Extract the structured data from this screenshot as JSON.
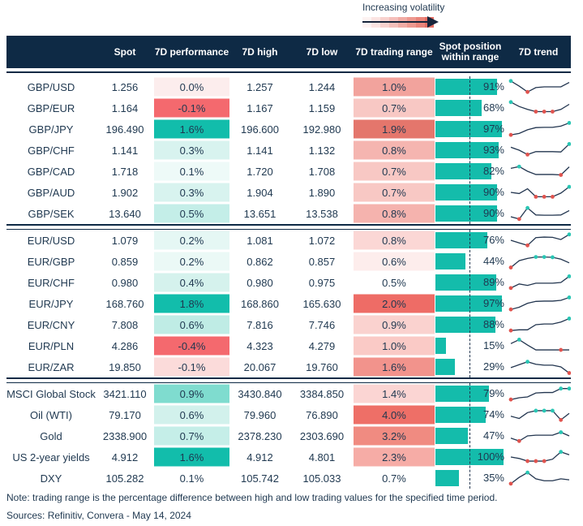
{
  "legend": {
    "label": "Increasing volatility",
    "gradient": [
      "#FDF3F2",
      "#FBE4E2",
      "#F8D2CE",
      "#F5BFBA",
      "#F1ACA5",
      "#EE9990",
      "#EA857B",
      "#E76F64"
    ],
    "arrow_color": "#16253B"
  },
  "colors": {
    "header_bg": "#0E2A45",
    "header_text": "#FFFFFF",
    "body_text": "#1F3850",
    "bar_teal": "#14BCAB",
    "spark_line": "#22354F",
    "spark_max_dot": "#29C6B4",
    "spark_min_dot": "#E0534E"
  },
  "chart_data": {
    "type": "table",
    "title": "",
    "columns": [
      {
        "label": ""
      },
      {
        "label": "Spot"
      },
      {
        "label": "7D performance"
      },
      {
        "label": "7D high"
      },
      {
        "label": "7D low"
      },
      {
        "label": "7D trading range"
      },
      {
        "label": "Spot position within range"
      },
      {
        "label": "7D trend"
      }
    ],
    "blocks": [
      [
        {
          "name": "GBP/USD",
          "spot": "1.256",
          "perf": "0.0%",
          "perf_bg": "#FCEDED",
          "high": "1.257",
          "low": "1.244",
          "range": "1.0%",
          "range_bg": "#F2A39D",
          "position": 91,
          "position_label": "91%",
          "trend": {
            "pts": [
              0.1,
              0.45,
              0.85,
              0.55,
              0.5,
              0.5,
              0.5,
              0.2
            ],
            "max": [
              0
            ],
            "min": [
              2
            ]
          }
        },
        {
          "name": "GBP/EUR",
          "spot": "1.164",
          "perf": "-0.1%",
          "perf_bg": "#F4696E",
          "high": "1.167",
          "low": "1.159",
          "range": "0.7%",
          "range_bg": "#F8C8C4",
          "position": 68,
          "position_label": "68%",
          "trend": {
            "pts": [
              0.1,
              0.4,
              0.6,
              0.75,
              0.75,
              0.75,
              0.6,
              0.25
            ],
            "max": [
              0
            ],
            "min": [
              3,
              4,
              5
            ]
          }
        },
        {
          "name": "GBP/JPY",
          "spot": "196.490",
          "perf": "1.6%",
          "perf_bg": "#12BDAB",
          "high": "196.600",
          "low": "192.980",
          "range": "1.9%",
          "range_bg": "#E4766C",
          "position": 97,
          "position_label": "97%",
          "trend": {
            "pts": [
              0.9,
              0.8,
              0.55,
              0.4,
              0.38,
              0.38,
              0.3,
              0.08
            ],
            "max": [
              7
            ],
            "min": [
              0
            ]
          }
        },
        {
          "name": "GBP/CHF",
          "spot": "1.141",
          "perf": "0.3%",
          "perf_bg": "#D8F3EF",
          "high": "1.141",
          "low": "1.132",
          "range": "0.8%",
          "range_bg": "#F5B5B0",
          "position": 93,
          "position_label": "93%",
          "trend": {
            "pts": [
              0.3,
              0.5,
              0.8,
              0.6,
              0.6,
              0.6,
              0.62,
              0.08
            ],
            "max": [
              7
            ],
            "min": [
              2
            ]
          }
        },
        {
          "name": "GBP/CAD",
          "spot": "1.718",
          "perf": "0.1%",
          "perf_bg": "#EEFAF8",
          "high": "1.720",
          "low": "1.708",
          "range": "0.7%",
          "range_bg": "#F8C8C4",
          "position": 82,
          "position_label": "82%",
          "trend": {
            "pts": [
              0.3,
              0.18,
              0.5,
              0.72,
              0.72,
              0.72,
              0.75,
              0.2
            ],
            "max": [
              1
            ],
            "min": [
              6
            ]
          }
        },
        {
          "name": "GBP/AUD",
          "spot": "1.902",
          "perf": "0.3%",
          "perf_bg": "#D8F3EF",
          "high": "1.904",
          "low": "1.890",
          "range": "0.7%",
          "range_bg": "#F8C8C4",
          "position": 90,
          "position_label": "90%",
          "trend": {
            "pts": [
              0.5,
              0.58,
              0.25,
              0.8,
              0.8,
              0.8,
              0.55,
              0.12
            ],
            "max": [
              7
            ],
            "min": [
              3,
              4,
              5
            ]
          }
        },
        {
          "name": "GBP/SEK",
          "spot": "13.640",
          "perf": "0.5%",
          "perf_bg": "#C4EEE8",
          "high": "13.651",
          "low": "13.538",
          "range": "0.8%",
          "range_bg": "#F5B3AE",
          "position": 90,
          "position_label": "90%",
          "trend": {
            "pts": [
              0.72,
              0.88,
              0.12,
              0.6,
              0.62,
              0.62,
              0.6,
              0.3
            ],
            "max": [
              2
            ],
            "min": [
              1
            ]
          }
        }
      ],
      [
        {
          "name": "EUR/USD",
          "spot": "1.079",
          "perf": "0.2%",
          "perf_bg": "#E5F7F4",
          "high": "1.081",
          "low": "1.072",
          "range": "0.8%",
          "range_bg": "#FBD7D5",
          "position": 76,
          "position_label": "76%",
          "trend": {
            "pts": [
              0.5,
              0.68,
              0.85,
              0.32,
              0.28,
              0.3,
              0.45,
              0.1
            ],
            "max": [
              7
            ],
            "min": [
              2
            ]
          }
        },
        {
          "name": "EUR/GBP",
          "spot": "0.859",
          "perf": "0.2%",
          "perf_bg": "#EBF9F6",
          "high": "0.862",
          "low": "0.857",
          "range": "0.6%",
          "range_bg": "#FDEDEC",
          "position": 44,
          "position_label": "44%",
          "trend": {
            "pts": [
              0.92,
              0.45,
              0.3,
              0.2,
              0.2,
              0.22,
              0.35,
              0.6
            ],
            "max": [
              3,
              4,
              5
            ],
            "min": [
              0
            ]
          }
        },
        {
          "name": "EUR/CHF",
          "spot": "0.980",
          "perf": "0.4%",
          "perf_bg": "#D5F2ED",
          "high": "0.980",
          "low": "0.975",
          "range": "0.5%",
          "range_bg": "#FFFFFF",
          "position": 89,
          "position_label": "89%",
          "trend": {
            "pts": [
              0.88,
              0.6,
              0.7,
              0.55,
              0.55,
              0.55,
              0.5,
              0.08
            ],
            "max": [
              7
            ],
            "min": [
              0
            ]
          }
        },
        {
          "name": "EUR/JPY",
          "spot": "168.760",
          "perf": "1.8%",
          "perf_bg": "#12BDAB",
          "high": "168.860",
          "low": "165.630",
          "range": "2.0%",
          "range_bg": "#EE6C66",
          "position": 97,
          "position_label": "97%",
          "trend": {
            "pts": [
              0.9,
              0.75,
              0.48,
              0.35,
              0.33,
              0.33,
              0.28,
              0.08
            ],
            "max": [
              7
            ],
            "min": [
              0
            ]
          }
        },
        {
          "name": "EUR/CNY",
          "spot": "7.808",
          "perf": "0.6%",
          "perf_bg": "#BFECE5",
          "high": "7.816",
          "low": "7.746",
          "range": "0.9%",
          "range_bg": "#FAD2CF",
          "position": 88,
          "position_label": "88%",
          "trend": {
            "pts": [
              0.9,
              0.85,
              0.85,
              0.5,
              0.45,
              0.45,
              0.32,
              0.08
            ],
            "max": [
              7
            ],
            "min": [
              0
            ]
          }
        },
        {
          "name": "EUR/PLN",
          "spot": "4.286",
          "perf": "-0.4%",
          "perf_bg": "#F4696E",
          "high": "4.323",
          "low": "4.279",
          "range": "1.0%",
          "range_bg": "#FACAC6",
          "position": 15,
          "position_label": "15%",
          "trend": {
            "pts": [
              0.35,
              0.08,
              0.45,
              0.78,
              0.78,
              0.78,
              0.78,
              0.78
            ],
            "max": [
              1
            ],
            "min": [
              6
            ]
          }
        },
        {
          "name": "EUR/ZAR",
          "spot": "19.850",
          "perf": "-0.1%",
          "perf_bg": "#FBDBDA",
          "high": "20.067",
          "low": "19.760",
          "range": "1.6%",
          "range_bg": "#F2938C",
          "position": 29,
          "position_label": "29%",
          "trend": {
            "pts": [
              0.55,
              0.35,
              0.15,
              0.32,
              0.38,
              0.38,
              0.5,
              0.92
            ],
            "max": [
              2
            ],
            "min": [
              7
            ]
          }
        }
      ],
      [
        {
          "name": "MSCI Global Stock",
          "spot": "3421.110",
          "perf": "0.9%",
          "perf_bg": "#7FDCCF",
          "high": "3430.840",
          "low": "3384.850",
          "range": "1.4%",
          "range_bg": "#FBD5D3",
          "position": 79,
          "position_label": "79%",
          "trend": {
            "pts": [
              0.9,
              0.78,
              0.72,
              0.45,
              0.42,
              0.42,
              0.15,
              0.15
            ],
            "max": [
              6,
              7
            ],
            "min": [
              0
            ]
          }
        },
        {
          "name": "Oil (WTI)",
          "spot": "79.170",
          "perf": "0.6%",
          "perf_bg": "#D2F1EC",
          "high": "79.960",
          "low": "76.890",
          "range": "4.0%",
          "range_bg": "#EE6F67",
          "position": 74,
          "position_label": "74%",
          "trend": {
            "pts": [
              0.6,
              0.75,
              0.35,
              0.22,
              0.22,
              0.22,
              0.85,
              0.4
            ],
            "max": [
              3,
              4,
              5
            ],
            "min": [
              6
            ]
          }
        },
        {
          "name": "Gold",
          "spot": "2338.900",
          "perf": "0.7%",
          "perf_bg": "#C5EEE8",
          "high": "2378.230",
          "low": "2303.690",
          "range": "3.2%",
          "range_bg": "#F08B81",
          "position": 47,
          "position_label": "47%",
          "trend": {
            "pts": [
              0.65,
              0.85,
              0.5,
              0.45,
              0.45,
              0.45,
              0.25,
              0.5
            ],
            "max": [
              6
            ],
            "min": [
              1
            ]
          }
        },
        {
          "name": "US 2-year yields",
          "spot": "4.912",
          "perf": "1.6%",
          "perf_bg": "#12BDAB",
          "high": "4.912",
          "low": "4.801",
          "range": "2.3%",
          "range_bg": "#F6ACA6",
          "position": 100,
          "position_label": "100%",
          "trend": {
            "pts": [
              0.5,
              0.6,
              0.78,
              0.78,
              0.78,
              0.65,
              0.15,
              0.35
            ],
            "max": [
              6
            ],
            "min": [
              2,
              3,
              4
            ]
          }
        },
        {
          "name": "DXY",
          "spot": "105.282",
          "perf": "0.1%",
          "perf_bg": "#FFFFFF",
          "high": "105.742",
          "low": "105.033",
          "range": "0.7%",
          "range_bg": "#FFFFFF",
          "position": 35,
          "position_label": "35%",
          "trend": {
            "pts": [
              0.88,
              0.45,
              0.12,
              0.55,
              0.68,
              0.68,
              0.55,
              0.62
            ],
            "max": [
              2
            ],
            "min": [
              0
            ]
          }
        }
      ]
    ]
  },
  "footer": {
    "note": "Note: trading range is the percentage difference between high and low trading values for the specified time period.",
    "sources": "Sources: Refinitiv, Convera - May 14, 2024"
  }
}
